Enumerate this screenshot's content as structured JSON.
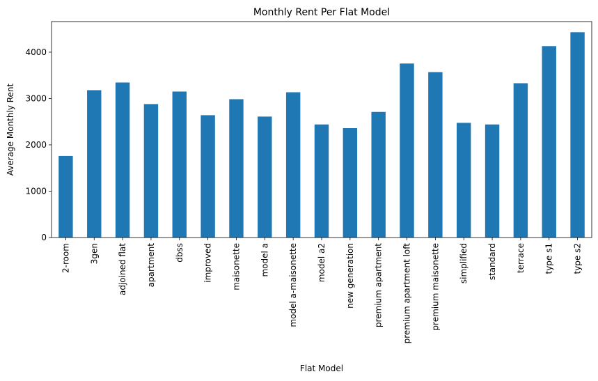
{
  "chart_data": {
    "type": "bar",
    "title": "Monthly Rent Per Flat Model",
    "xlabel": "Flat Model",
    "ylabel": "Average Monthly Rent",
    "categories": [
      "2-room",
      "3gen",
      "adjoined flat",
      "apartment",
      "dbss",
      "improved",
      "maisonette",
      "model a",
      "model a-maisonette",
      "model a2",
      "new generation",
      "premium apartment",
      "premium apartment loft",
      "premium maisonette",
      "simplified",
      "standard",
      "terrace",
      "type s1",
      "type s2"
    ],
    "values": [
      1760,
      3180,
      3345,
      2880,
      3150,
      2640,
      2985,
      2610,
      3135,
      2440,
      2360,
      2710,
      3755,
      3570,
      2475,
      2440,
      3330,
      4130,
      4430
    ],
    "yticks": [
      0,
      1000,
      2000,
      3000,
      4000
    ],
    "ylim": [
      0,
      4660
    ],
    "bar_color": "#1f77b4",
    "grid": false,
    "legend": "none"
  }
}
